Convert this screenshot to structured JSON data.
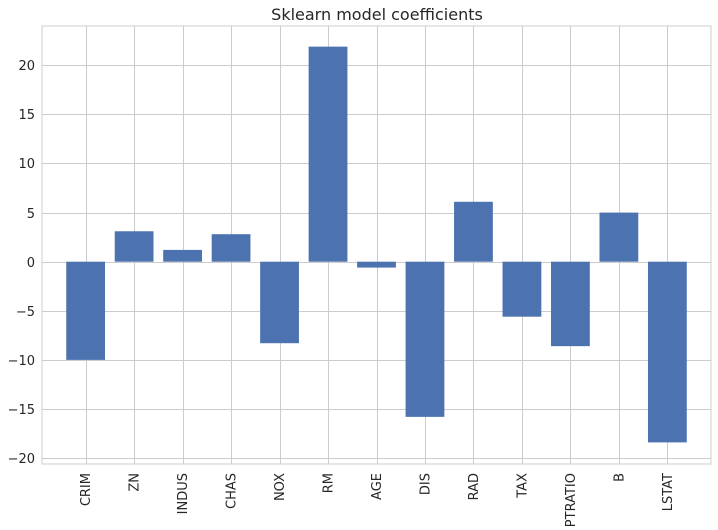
{
  "chart_data": {
    "type": "bar",
    "title": "Sklearn model coefficients",
    "xlabel": "",
    "ylabel": "",
    "categories": [
      "CRIM",
      "ZN",
      "INDUS",
      "CHAS",
      "NOX",
      "RM",
      "AGE",
      "DIS",
      "RAD",
      "TAX",
      "PTRATIO",
      "B",
      "LSTAT"
    ],
    "values": [
      -10.0,
      3.1,
      1.2,
      2.8,
      -8.3,
      21.9,
      -0.6,
      -15.8,
      6.1,
      -5.6,
      -8.6,
      5.0,
      -18.4
    ],
    "ylim": [
      -20.6,
      24.0
    ],
    "yticks": [
      -20,
      -15,
      -10,
      -5,
      0,
      5,
      10,
      15,
      20
    ],
    "grid": true,
    "bar_color": "#4c72b0",
    "grid_color": "#cccccc",
    "text_color": "#262626"
  }
}
